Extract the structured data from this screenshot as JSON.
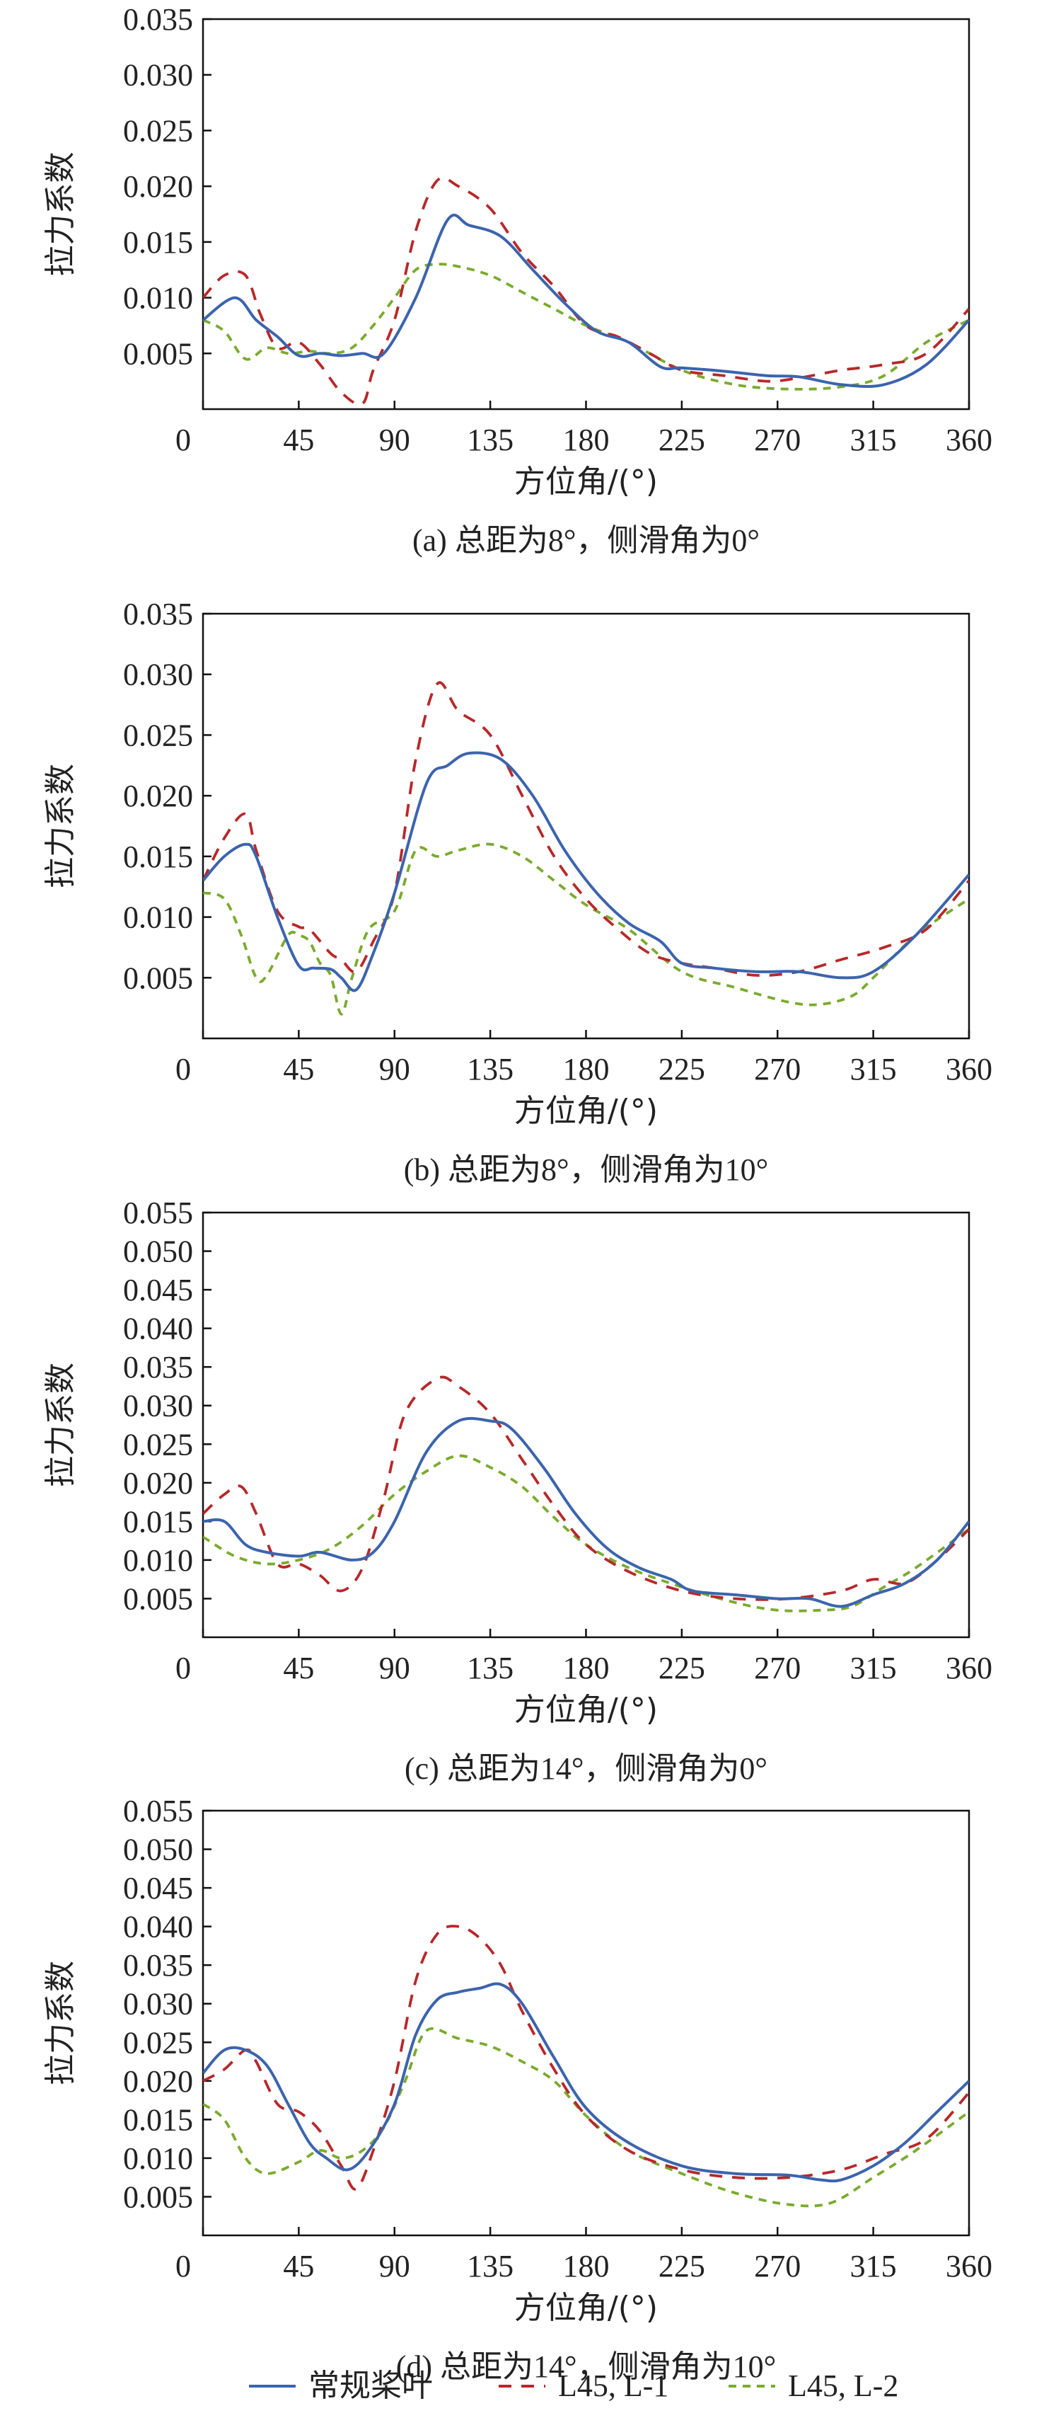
{
  "chart_data": [
    {
      "type": "line",
      "caption": "(a) 总距为8°，侧滑角为0°",
      "xlabel": "方位角/(°)",
      "ylabel": "拉力系数",
      "xlim": [
        0,
        360
      ],
      "ylim": [
        0,
        0.035
      ],
      "xticks": [
        "0",
        "45",
        "90",
        "135",
        "180",
        "225",
        "270",
        "315",
        "360"
      ],
      "yticks": [
        "0.005",
        "0.010",
        "0.015",
        "0.020",
        "0.025",
        "0.030",
        "0.035"
      ],
      "series": [
        {
          "name": "常规桨叶",
          "x": [
            0,
            15,
            25,
            35,
            45,
            55,
            65,
            75,
            85,
            100,
            115,
            125,
            140,
            155,
            170,
            185,
            200,
            215,
            225,
            245,
            265,
            280,
            300,
            320,
            340,
            360
          ],
          "y": [
            0.008,
            0.01,
            0.008,
            0.0065,
            0.0048,
            0.005,
            0.0048,
            0.005,
            0.005,
            0.01,
            0.017,
            0.0165,
            0.0155,
            0.0125,
            0.0095,
            0.007,
            0.006,
            0.0038,
            0.0037,
            0.0034,
            0.003,
            0.0029,
            0.0022,
            0.0022,
            0.004,
            0.008
          ]
        },
        {
          "name": "L45, L-1",
          "x": [
            0,
            10,
            20,
            27,
            35,
            45,
            55,
            65,
            75,
            80,
            90,
            100,
            110,
            120,
            135,
            150,
            165,
            180,
            195,
            210,
            225,
            245,
            265,
            280,
            300,
            320,
            340,
            360
          ],
          "y": [
            0.01,
            0.012,
            0.012,
            0.0085,
            0.0055,
            0.006,
            0.004,
            0.0015,
            0.0005,
            0.0035,
            0.008,
            0.016,
            0.0205,
            0.02,
            0.018,
            0.014,
            0.011,
            0.0075,
            0.0065,
            0.005,
            0.0035,
            0.003,
            0.0025,
            0.0028,
            0.0035,
            0.004,
            0.005,
            0.009
          ]
        },
        {
          "name": "L45, L-2",
          "x": [
            0,
            10,
            20,
            30,
            40,
            50,
            60,
            70,
            80,
            90,
            100,
            110,
            120,
            135,
            150,
            165,
            180,
            200,
            225,
            250,
            275,
            300,
            320,
            340,
            360
          ],
          "y": [
            0.008,
            0.007,
            0.0045,
            0.0055,
            0.005,
            0.0052,
            0.005,
            0.0055,
            0.0075,
            0.01,
            0.0125,
            0.013,
            0.0128,
            0.012,
            0.0105,
            0.009,
            0.0075,
            0.006,
            0.0035,
            0.0022,
            0.0018,
            0.002,
            0.003,
            0.006,
            0.008
          ]
        }
      ]
    },
    {
      "type": "line",
      "caption": "(b) 总距为8°，侧滑角为10°",
      "xlabel": "方位角/(°)",
      "ylabel": "拉力系数",
      "xlim": [
        0,
        360
      ],
      "ylim": [
        0,
        0.035
      ],
      "xticks": [
        "0",
        "45",
        "90",
        "135",
        "180",
        "225",
        "270",
        "315",
        "360"
      ],
      "yticks": [
        "0.005",
        "0.010",
        "0.015",
        "0.020",
        "0.025",
        "0.030",
        "0.035"
      ],
      "series": [
        {
          "name": "常规桨叶",
          "x": [
            0,
            10,
            20,
            25,
            35,
            45,
            52,
            60,
            65,
            72,
            80,
            90,
            105,
            115,
            125,
            140,
            155,
            170,
            185,
            200,
            215,
            225,
            240,
            260,
            280,
            300,
            315,
            335,
            360
          ],
          "y": [
            0.013,
            0.015,
            0.016,
            0.015,
            0.01,
            0.006,
            0.0058,
            0.0057,
            0.005,
            0.004,
            0.007,
            0.012,
            0.021,
            0.0225,
            0.0235,
            0.023,
            0.02,
            0.0155,
            0.012,
            0.0095,
            0.008,
            0.0062,
            0.0058,
            0.0055,
            0.0055,
            0.005,
            0.0055,
            0.0085,
            0.0135
          ]
        },
        {
          "name": "L45, L-1",
          "x": [
            0,
            10,
            20,
            25,
            35,
            45,
            50,
            60,
            65,
            72,
            80,
            90,
            100,
            110,
            120,
            135,
            150,
            165,
            180,
            195,
            210,
            225,
            240,
            260,
            280,
            300,
            320,
            340,
            360
          ],
          "y": [
            0.013,
            0.0165,
            0.0185,
            0.0155,
            0.0105,
            0.0092,
            0.009,
            0.007,
            0.0065,
            0.0055,
            0.008,
            0.012,
            0.023,
            0.0292,
            0.027,
            0.025,
            0.02,
            0.015,
            0.0115,
            0.009,
            0.007,
            0.0062,
            0.0058,
            0.0052,
            0.0055,
            0.0065,
            0.0075,
            0.009,
            0.013
          ]
        },
        {
          "name": "L45, L-2",
          "x": [
            0,
            10,
            18,
            25,
            30,
            40,
            45,
            50,
            55,
            60,
            65,
            70,
            78,
            90,
            100,
            110,
            120,
            135,
            150,
            165,
            180,
            200,
            225,
            250,
            275,
            290,
            305,
            315,
            335,
            360
          ],
          "y": [
            0.012,
            0.0115,
            0.0085,
            0.005,
            0.0052,
            0.0085,
            0.0085,
            0.008,
            0.0062,
            0.0052,
            0.002,
            0.005,
            0.009,
            0.0105,
            0.0155,
            0.015,
            0.0155,
            0.016,
            0.015,
            0.013,
            0.011,
            0.009,
            0.0055,
            0.0042,
            0.003,
            0.0028,
            0.0035,
            0.005,
            0.0085,
            0.0115
          ]
        }
      ]
    },
    {
      "type": "line",
      "caption": "(c) 总距为14°，侧滑角为0°",
      "xlabel": "方位角/(°)",
      "ylabel": "拉力系数",
      "xlim": [
        0,
        360
      ],
      "ylim": [
        0,
        0.055
      ],
      "xticks": [
        "0",
        "45",
        "90",
        "135",
        "180",
        "225",
        "270",
        "315",
        "360"
      ],
      "yticks": [
        "0.005",
        "0.010",
        "0.015",
        "0.020",
        "0.025",
        "0.030",
        "0.035",
        "0.040",
        "0.045",
        "0.050",
        "0.055"
      ],
      "series": [
        {
          "name": "常规桨叶",
          "x": [
            0,
            10,
            20,
            30,
            45,
            55,
            70,
            80,
            90,
            105,
            120,
            135,
            145,
            160,
            175,
            190,
            205,
            220,
            230,
            250,
            270,
            285,
            300,
            315,
            330,
            345,
            360
          ],
          "y": [
            0.015,
            0.015,
            0.012,
            0.011,
            0.0105,
            0.011,
            0.01,
            0.011,
            0.015,
            0.024,
            0.028,
            0.028,
            0.027,
            0.022,
            0.016,
            0.0115,
            0.009,
            0.0075,
            0.006,
            0.0055,
            0.005,
            0.005,
            0.004,
            0.0055,
            0.007,
            0.01,
            0.015
          ]
        },
        {
          "name": "L45, L-1",
          "x": [
            0,
            10,
            18,
            25,
            35,
            45,
            55,
            65,
            75,
            85,
            95,
            110,
            120,
            135,
            150,
            165,
            180,
            200,
            225,
            250,
            275,
            300,
            315,
            330,
            345,
            360
          ],
          "y": [
            0.016,
            0.0185,
            0.0195,
            0.016,
            0.0095,
            0.0095,
            0.008,
            0.006,
            0.009,
            0.018,
            0.029,
            0.0335,
            0.0325,
            0.029,
            0.023,
            0.017,
            0.012,
            0.0085,
            0.006,
            0.005,
            0.005,
            0.006,
            0.0075,
            0.007,
            0.01,
            0.014
          ]
        },
        {
          "name": "L45, L-2",
          "x": [
            0,
            15,
            30,
            45,
            60,
            75,
            90,
            105,
            120,
            135,
            150,
            165,
            180,
            200,
            225,
            250,
            270,
            290,
            305,
            320,
            335,
            360
          ],
          "y": [
            0.013,
            0.0105,
            0.0095,
            0.01,
            0.0115,
            0.0145,
            0.0185,
            0.0215,
            0.0235,
            0.022,
            0.0195,
            0.0155,
            0.012,
            0.009,
            0.0065,
            0.0045,
            0.0035,
            0.0035,
            0.004,
            0.0065,
            0.009,
            0.014
          ]
        }
      ]
    },
    {
      "type": "line",
      "caption": "(d) 总距为14°，侧滑角为10°",
      "xlabel": "方位角/(°)",
      "ylabel": "拉力系数",
      "xlim": [
        0,
        360
      ],
      "ylim": [
        0,
        0.055
      ],
      "xticks": [
        "0",
        "45",
        "90",
        "135",
        "180",
        "225",
        "270",
        "315",
        "360"
      ],
      "yticks": [
        "0.005",
        "0.010",
        "0.015",
        "0.020",
        "0.025",
        "0.030",
        "0.035",
        "0.040",
        "0.045",
        "0.050",
        "0.055"
      ],
      "series": [
        {
          "name": "常规桨叶",
          "x": [
            0,
            10,
            20,
            30,
            40,
            50,
            58,
            68,
            78,
            90,
            100,
            110,
            120,
            130,
            140,
            150,
            165,
            180,
            200,
            225,
            250,
            275,
            290,
            300,
            315,
            330,
            345,
            360
          ],
          "y": [
            0.021,
            0.024,
            0.024,
            0.022,
            0.017,
            0.012,
            0.01,
            0.0085,
            0.011,
            0.017,
            0.026,
            0.0305,
            0.0315,
            0.032,
            0.0325,
            0.03,
            0.023,
            0.0165,
            0.012,
            0.009,
            0.008,
            0.0078,
            0.0072,
            0.0072,
            0.009,
            0.012,
            0.016,
            0.02
          ]
        },
        {
          "name": "L45, L-1",
          "x": [
            0,
            10,
            20,
            25,
            35,
            45,
            55,
            65,
            72,
            80,
            90,
            100,
            110,
            120,
            130,
            140,
            150,
            165,
            180,
            200,
            225,
            250,
            275,
            300,
            320,
            340,
            360
          ],
          "y": [
            0.02,
            0.0215,
            0.024,
            0.0225,
            0.017,
            0.016,
            0.0135,
            0.009,
            0.006,
            0.011,
            0.02,
            0.033,
            0.039,
            0.04,
            0.0385,
            0.035,
            0.029,
            0.0215,
            0.0155,
            0.011,
            0.0085,
            0.0075,
            0.0075,
            0.0085,
            0.0105,
            0.0125,
            0.0185
          ]
        },
        {
          "name": "L45, L-2",
          "x": [
            0,
            10,
            20,
            30,
            45,
            55,
            65,
            75,
            85,
            95,
            105,
            120,
            135,
            150,
            165,
            180,
            200,
            225,
            250,
            275,
            295,
            315,
            335,
            360
          ],
          "y": [
            0.017,
            0.015,
            0.01,
            0.008,
            0.0095,
            0.011,
            0.01,
            0.011,
            0.014,
            0.02,
            0.0265,
            0.0255,
            0.0245,
            0.0225,
            0.02,
            0.0155,
            0.011,
            0.008,
            0.0055,
            0.004,
            0.0042,
            0.0075,
            0.011,
            0.016
          ]
        }
      ]
    }
  ],
  "legend": {
    "placement": "bottom-center",
    "items": [
      "常规桨叶",
      "L45, L-1",
      "L45, L-2"
    ]
  },
  "colors": {
    "series": [
      "#3b64ad",
      "#b8282a",
      "#7aab2e"
    ],
    "axis": "#111111",
    "text": "#222222"
  }
}
